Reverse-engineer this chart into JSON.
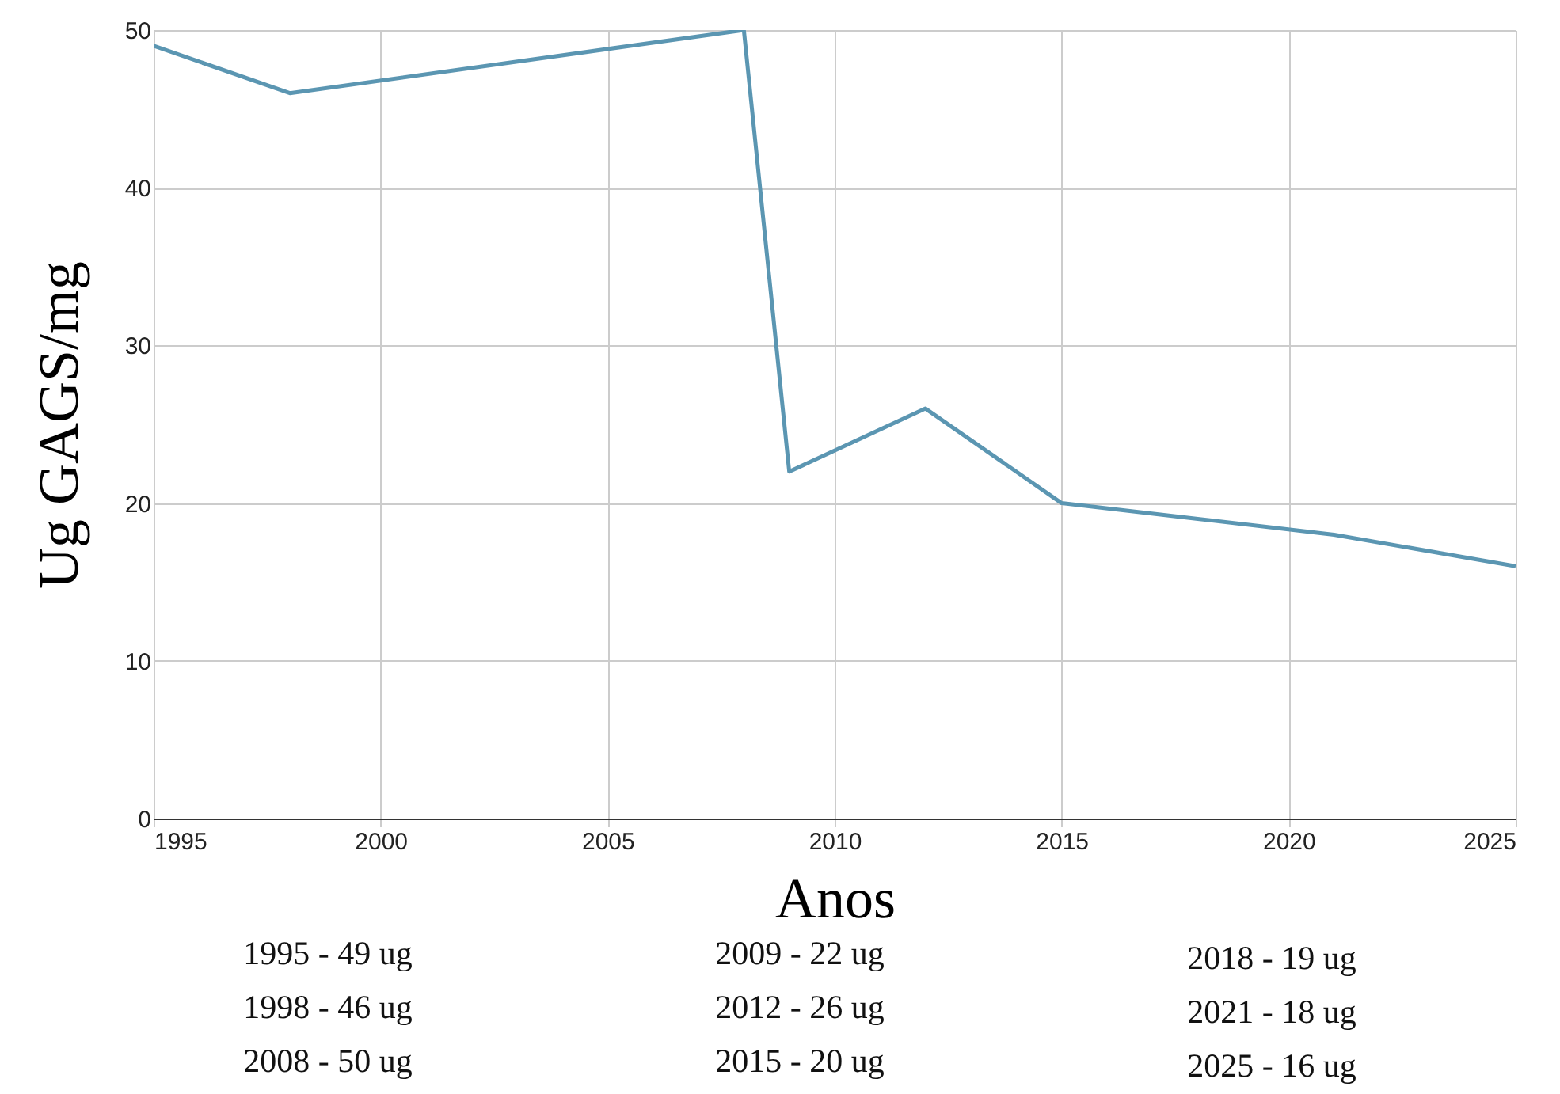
{
  "chart_data": {
    "type": "line",
    "xlabel": "Anos",
    "ylabel": "Ug GAGS/mg",
    "x": [
      1995,
      1998,
      2008,
      2009,
      2012,
      2015,
      2018,
      2021,
      2025
    ],
    "series": [
      {
        "color": "#5b96b2",
        "values": [
          49,
          46,
          50,
          22,
          26,
          20,
          19,
          18,
          16
        ]
      }
    ],
    "annotations": [
      "1995 - 49 ug",
      "1998 - 46 ug",
      "2008 - 50 ug",
      "2009 - 22 ug",
      "2012 - 26 ug",
      "2015 - 20 ug",
      "2018 - 19 ug",
      "2021 - 18 ug",
      "2025 - 16 ug"
    ],
    "xlim": [
      1995,
      2025
    ],
    "xticks": [
      1995,
      2000,
      2005,
      2010,
      2015,
      2020,
      2025
    ],
    "ylim": [
      0,
      50
    ],
    "yticks": [
      0,
      10,
      20,
      30,
      40,
      50
    ],
    "grid": true,
    "marker": "none",
    "line_style": "solid"
  }
}
